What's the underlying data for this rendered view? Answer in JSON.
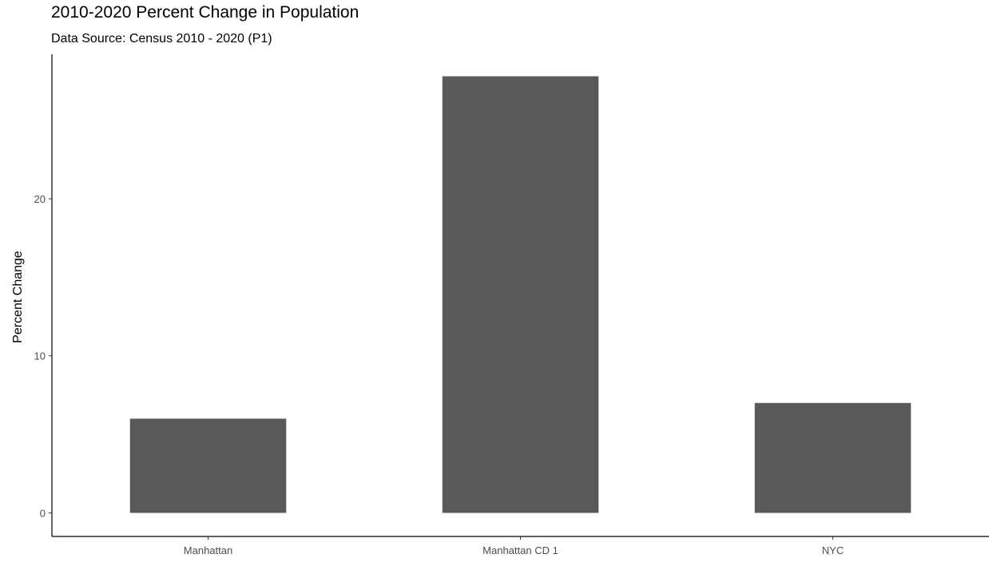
{
  "chart_data": {
    "type": "bar",
    "title": "2010-2020 Percent Change in Population",
    "subtitle": "Data Source: Census 2010 - 2020 (P1)",
    "xlabel": "",
    "ylabel": "Percent Change",
    "categories": [
      "Manhattan",
      "Manhattan CD 1",
      "NYC"
    ],
    "values": [
      6.0,
      27.8,
      7.0
    ],
    "ylim": [
      -1.5,
      29.2
    ],
    "yticks": [
      "0",
      "10",
      "20"
    ],
    "bar_color": "#595959",
    "grid": false,
    "legend": "none"
  }
}
